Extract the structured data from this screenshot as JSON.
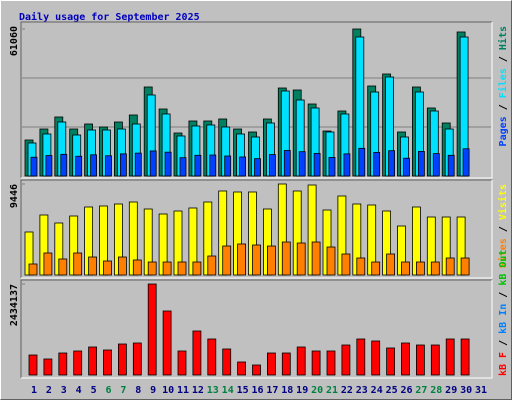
{
  "chart_data": [
    {
      "type": "bar",
      "title": "Daily usage for September 2025",
      "series": [
        {
          "name": "Pages",
          "color": "#0040ff",
          "values": [
            7800,
            8500,
            9000,
            8200,
            8800,
            8400,
            9200,
            9500,
            10400,
            9900,
            7600,
            8600,
            8700,
            8300,
            7900,
            7200,
            8900,
            10600,
            10100,
            9400,
            7700,
            9200,
            11500,
            9800,
            10500,
            7400,
            10200,
            9300,
            8600,
            11300,
            0
          ]
        },
        {
          "name": "Files",
          "color": "#00e0ff",
          "values": [
            13710,
            17450,
            22430,
            17030,
            19110,
            19110,
            19520,
            21600,
            33650,
            25760,
            16620,
            20770,
            21190,
            20350,
            17450,
            16200,
            22020,
            35310,
            31570,
            28250,
            18280,
            25760,
            57740,
            34890,
            41120,
            16200,
            34890,
            27000,
            19520,
            57740,
            0
          ]
        },
        {
          "name": "Hits",
          "color": "#008060",
          "values": [
            14950,
            19520,
            24510,
            19520,
            21600,
            20350,
            22430,
            25340,
            36970,
            27830,
            17860,
            22850,
            22850,
            23680,
            19520,
            18280,
            23680,
            36550,
            35720,
            29910,
            18690,
            27000,
            61060,
            37380,
            42370,
            18280,
            36970,
            28250,
            22020,
            59820,
            0
          ]
        }
      ],
      "ylim": [
        0,
        61060
      ],
      "yticks": [
        61060
      ],
      "grid": true,
      "legend_separator": " / "
    },
    {
      "type": "bar",
      "series": [
        {
          "name": "Sites",
          "color": "#ff8000",
          "values": [
            1142,
            2284,
            1661,
            2284,
            1868,
            1453,
            1868,
            1557,
            1349,
            1349,
            1349,
            1349,
            1972,
            3010,
            3218,
            3114,
            3010,
            3425,
            3322,
            3425,
            2906,
            2180,
            1765,
            1349,
            2180,
            1349,
            1349,
            1349,
            1765,
            1765,
            0
          ]
        },
        {
          "name": "Visits",
          "color": "#ffff00",
          "values": [
            4464,
            6228,
            5398,
            6124,
            7058,
            7162,
            7370,
            7577,
            6851,
            6332,
            6643,
            6955,
            7577,
            8719,
            8615,
            8615,
            6851,
            9446,
            8719,
            9342,
            6747,
            8200,
            7370,
            7266,
            6643,
            5086,
            7058,
            6020,
            6020,
            6020,
            0
          ]
        }
      ],
      "ylim": [
        0,
        9446
      ],
      "yticks": [
        9446
      ],
      "grid": false,
      "legend_separator": " / "
    },
    {
      "type": "bar",
      "categories": [
        "1",
        "2",
        "3",
        "4",
        "5",
        "6",
        "7",
        "8",
        "9",
        "10",
        "11",
        "12",
        "13",
        "14",
        "15",
        "16",
        "17",
        "18",
        "19",
        "20",
        "21",
        "22",
        "23",
        "24",
        "25",
        "26",
        "27",
        "28",
        "29",
        "30",
        "31"
      ],
      "category_colors": [
        "#000080",
        "#000080",
        "#000080",
        "#000080",
        "#000080",
        "#008040",
        "#008040",
        "#000080",
        "#000080",
        "#000080",
        "#000080",
        "#000080",
        "#008040",
        "#008040",
        "#000080",
        "#000080",
        "#000080",
        "#000080",
        "#000080",
        "#008040",
        "#008040",
        "#000080",
        "#000080",
        "#000080",
        "#000080",
        "#000080",
        "#008040",
        "#008040",
        "#000080",
        "#000080",
        "#000080"
      ],
      "series": [
        {
          "name": "kB F",
          "color": "#ff0000",
          "values": [
            534980,
            427980,
            588480,
            641980,
            748970,
            668730,
            829220,
            855970,
            2434137,
            1711930,
            641980,
            1176960,
            962970,
            695480,
            347740,
            267490,
            588480,
            588480,
            748970,
            641980,
            641980,
            802470,
            962970,
            909470,
            722230,
            855970,
            802470,
            802470,
            962970,
            962970,
            0
          ]
        },
        {
          "name": "kB In",
          "color": "#0080ff"
        },
        {
          "name": "kB Out",
          "color": "#00c000"
        }
      ],
      "ylim": [
        0,
        2434137
      ],
      "yticks": [
        2434137
      ],
      "grid": false,
      "legend_separator": " / "
    }
  ]
}
